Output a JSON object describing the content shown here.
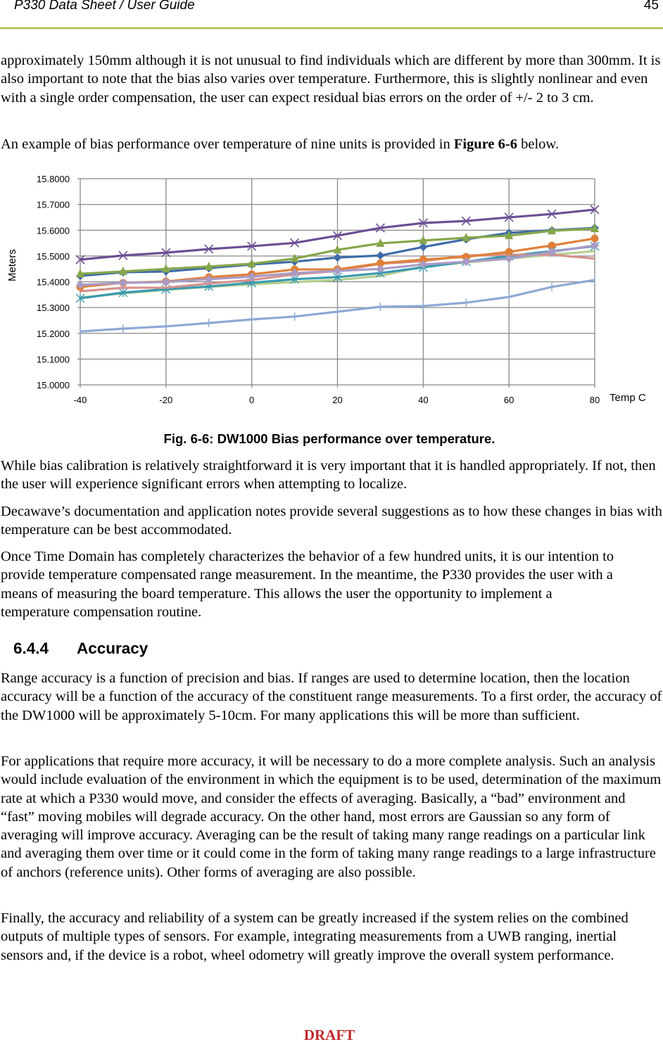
{
  "header": {
    "title": "P330 Data Sheet / User Guide",
    "page_number": "45"
  },
  "paragraphs_top": [
    "approximately 150mm although it is not unusual to find individuals which are different by more than 300mm. It is also important to note that the bias also varies over temperature.  Furthermore, this is slightly nonlinear and even with a single order compensation, the user can expect residual bias errors on the order of +/- 2 to 3 cm.",
    {
      "before": "An example of bias performance over temperature of nine units is provided in ",
      "bold": "Figure 6-6",
      "after": " below."
    }
  ],
  "chart_data": {
    "type": "line",
    "title": "",
    "xlabel": "Temp C",
    "ylabel": "Meters",
    "xlim": [
      -40,
      80
    ],
    "ylim": [
      15.0,
      15.8
    ],
    "x_ticks": [
      "-40",
      "-20",
      "0",
      "20",
      "40",
      "60",
      "80"
    ],
    "y_ticks": [
      "15.0000",
      "15.1000",
      "15.2000",
      "15.3000",
      "15.4000",
      "15.5000",
      "15.6000",
      "15.7000",
      "15.8000"
    ],
    "grid": true,
    "legend": "none",
    "x": [
      -40,
      -30,
      -20,
      -10,
      0,
      10,
      20,
      30,
      40,
      50,
      60,
      70,
      80
    ],
    "series": [
      {
        "color": "#8da9d4",
        "marker": "plus",
        "values": [
          15.207,
          15.218,
          15.227,
          15.24,
          15.254,
          15.265,
          15.284,
          15.303,
          15.306,
          15.319,
          15.341,
          15.38,
          15.407
        ]
      },
      {
        "color": "#b5cf8f",
        "marker": "none",
        "values": [
          15.339,
          15.355,
          15.369,
          15.38,
          15.39,
          15.399,
          15.407,
          15.423,
          15.459,
          15.475,
          15.49,
          15.505,
          15.519
        ]
      },
      {
        "color": "#3a9ab0",
        "marker": "asterisk",
        "values": [
          15.336,
          15.358,
          15.371,
          15.382,
          15.396,
          15.41,
          15.418,
          15.434,
          15.456,
          15.478,
          15.5,
          15.519,
          15.538
        ]
      },
      {
        "color": "#d4918c",
        "marker": "none",
        "values": [
          15.363,
          15.377,
          15.377,
          15.393,
          15.407,
          15.429,
          15.442,
          15.47,
          15.48,
          15.502,
          15.505,
          15.505,
          15.49
        ]
      },
      {
        "color": "#e0813a",
        "marker": "circle",
        "values": [
          15.38,
          15.396,
          15.401,
          15.418,
          15.429,
          15.448,
          15.448,
          15.472,
          15.486,
          15.497,
          15.516,
          15.541,
          15.568
        ]
      },
      {
        "color": "#a99bc6",
        "marker": "diamond",
        "values": [
          15.388,
          15.396,
          15.399,
          15.41,
          15.42,
          15.434,
          15.442,
          15.45,
          15.467,
          15.478,
          15.49,
          15.516,
          15.541
        ]
      },
      {
        "color": "#3e6ca8",
        "marker": "diamond",
        "values": [
          15.423,
          15.437,
          15.44,
          15.453,
          15.467,
          15.478,
          15.494,
          15.502,
          15.535,
          15.565,
          15.59,
          15.6,
          15.609
        ]
      },
      {
        "color": "#86a64a",
        "marker": "triangle",
        "values": [
          15.431,
          15.44,
          15.45,
          15.459,
          15.47,
          15.49,
          15.524,
          15.549,
          15.56,
          15.571,
          15.579,
          15.598,
          15.606
        ]
      },
      {
        "color": "#6c4f94",
        "marker": "x",
        "values": [
          15.486,
          15.502,
          15.513,
          15.527,
          15.538,
          15.551,
          15.579,
          15.609,
          15.628,
          15.636,
          15.65,
          15.663,
          15.68
        ]
      }
    ]
  },
  "caption": "Fig. 6-6: DW1000 Bias performance over temperature.",
  "paragraphs_mid": [
    "While bias calibration is relatively straightforward it is very important that it is handled appropriately. If not, then the user will experience significant errors when attempting to localize.",
    "Decawave’s documentation and application notes provide several suggestions as to how these changes in bias with temperature can be best accommodated.",
    "Once Time Domain has completely characterizes the behavior of a few hundred units, it is our intention to provide temperature compensated range measurement.  In the meantime, the P330 provides the user with a means of measuring the board temperature.  This allows the user the opportunity to implement a temperature compensation routine."
  ],
  "section": {
    "number": "6.4.4",
    "title": "Accuracy"
  },
  "paragraphs_bottom": [
    "Range accuracy is a function of precision and bias.  If ranges are used to determine location, then the location accuracy will be a function of the accuracy of the constituent range measurements.  To a first order, the accuracy of the DW1000 will be approximately 5-10cm.  For many applications this will be more than sufficient.",
    "For applications that require more accuracy, it will be necessary to do a more complete analysis.  Such an analysis would include evaluation of the environment in which the equipment is to be used, determination of the maximum rate at which a P330 would move, and consider the effects of averaging.   Basically, a “bad” environment and “fast” moving mobiles will degrade accuracy.   On the other hand, most errors are Gaussian so any form of averaging will improve accuracy.   Averaging can be the result of taking many range readings on a particular link and averaging them over time or it could come in the form of taking many range readings to a large infrastructure of anchors (reference units).  Other forms of averaging are also possible.",
    "Finally, the accuracy and reliability of a system can be greatly increased if the system relies on the combined outputs of multiple types of sensors.  For example, integrating measurements from a UWB ranging, inertial sensors and, if the device is a robot, wheel odometry will greatly improve the overall system performance."
  ],
  "footer": {
    "watermark": "DRAFT"
  }
}
